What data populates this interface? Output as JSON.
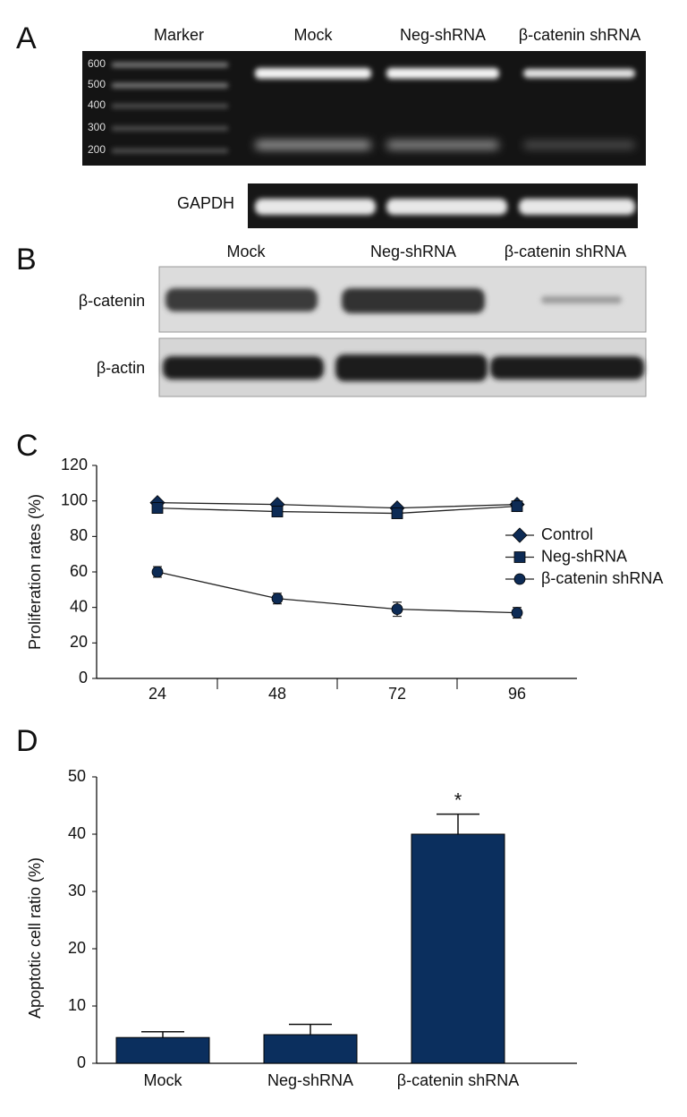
{
  "panels": {
    "a": "A",
    "b": "B",
    "c": "C",
    "d": "D"
  },
  "gel_a": {
    "lanes": [
      "Marker",
      "Mock",
      "Neg-shRNA",
      "β-catenin shRNA"
    ],
    "ladder": [
      "600",
      "500",
      "400",
      "300",
      "200"
    ],
    "control": "GAPDH"
  },
  "gel_b": {
    "lanes": [
      "Mock",
      "Neg-shRNA",
      "β-catenin shRNA"
    ],
    "rows": [
      "β-catenin",
      "β-actin"
    ]
  },
  "chart_data": [
    {
      "type": "line",
      "ylabel": "Proliferation rates (%)",
      "categories": [
        "24",
        "48",
        "72",
        "96"
      ],
      "series": [
        {
          "name": "Control",
          "color": "#0d2b55",
          "marker": "diamond",
          "values": [
            99,
            98,
            96,
            98
          ]
        },
        {
          "name": "Neg-shRNA",
          "color": "#0d2b55",
          "marker": "square",
          "values": [
            96,
            94,
            93,
            97
          ]
        },
        {
          "name": "β-catenin shRNA",
          "color": "#0d2b55",
          "marker": "circle",
          "values": [
            60,
            45,
            39,
            37
          ],
          "errors": [
            3,
            3,
            4,
            3
          ]
        }
      ],
      "ylim": [
        0,
        120
      ],
      "yticks": [
        0,
        20,
        40,
        60,
        80,
        100,
        120
      ],
      "legend": "right"
    },
    {
      "type": "bar",
      "ylabel": "Apoptotic cell ratio (%)",
      "categories": [
        "Mock",
        "Neg-shRNA",
        "β-catenin shRNA"
      ],
      "values": [
        4.5,
        5,
        40
      ],
      "errors": [
        1,
        1.8,
        3.5
      ],
      "color": "#0b2f5e",
      "annotation": "*",
      "ylim": [
        0,
        50
      ],
      "yticks": [
        0,
        10,
        20,
        30,
        40,
        50
      ]
    }
  ]
}
